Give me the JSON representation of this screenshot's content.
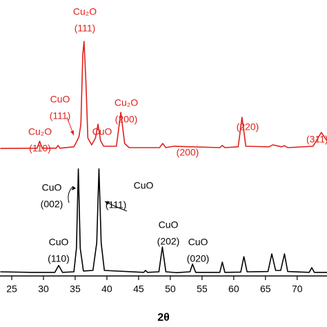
{
  "chart_data": {
    "type": "line",
    "x_label": "2θ",
    "xlim": [
      23.15,
      74.7
    ],
    "xticks": [
      25,
      30,
      35,
      40,
      45,
      50,
      55,
      60,
      65,
      70
    ],
    "ylim": [
      0,
      100
    ],
    "series": [
      {
        "color": "#000000",
        "x": [
          23.2,
          28,
          31.8,
          32.4,
          33,
          34.8,
          35.2,
          35.5,
          35.8,
          36.3,
          37.8,
          38.4,
          38.75,
          39.1,
          39.6,
          45.8,
          46.1,
          46.4,
          48.2,
          48.75,
          49.3,
          51,
          53.1,
          53.5,
          54,
          57.8,
          58.2,
          58.6,
          61.1,
          61.6,
          62.1,
          65.4,
          66,
          66.6,
          67.4,
          68,
          68.5,
          71.9,
          72.3,
          72.7,
          74.7
        ],
        "values": [
          1.5,
          1.3,
          1.3,
          3.8,
          1.3,
          1.5,
          10,
          38.8,
          10,
          1.8,
          2,
          12,
          38.8,
          12,
          2,
          1.3,
          2,
          1.3,
          1.5,
          10.5,
          1.5,
          1.2,
          1.5,
          4.3,
          1.3,
          1.3,
          5,
          1.3,
          1.4,
          7,
          1.5,
          1.6,
          8,
          2,
          2,
          8,
          1.6,
          1.3,
          3,
          1.3,
          1.3
        ]
      },
      {
        "color": "#e0201b",
        "x": [
          23.2,
          29,
          29.4,
          29.8,
          32,
          32.3,
          32.6,
          34.8,
          35.3,
          35.6,
          35.9,
          36.2,
          36.4,
          36.7,
          37,
          37.6,
          38.2,
          38.6,
          39,
          39.5,
          41.5,
          42.2,
          42.8,
          43.5,
          48.3,
          48.8,
          49.3,
          50.5,
          57.8,
          58.2,
          58.6,
          60.7,
          61.3,
          61.9,
          65.5,
          66.2,
          67.5,
          68,
          68.5,
          72.5,
          73.8,
          74.7
        ],
        "values": [
          46.2,
          46.3,
          48.8,
          46.3,
          46.3,
          47.3,
          46.3,
          46.8,
          49,
          50.5,
          55,
          80,
          85,
          70,
          50,
          47.5,
          50,
          55,
          49,
          47,
          47,
          59.3,
          48,
          46.5,
          46.5,
          48,
          46.5,
          47,
          46.5,
          47.3,
          46.5,
          46.8,
          57.5,
          47,
          46.8,
          47.5,
          46.8,
          47.2,
          46.5,
          47,
          52,
          49
        ]
      }
    ],
    "annotations": [
      {
        "lines": [
          "Cu₂O",
          "(111)"
        ],
        "color": "#e0201b"
      },
      {
        "lines": [
          "CuO",
          "(111)"
        ],
        "color": "#e0201b"
      },
      {
        "lines": [
          "Cu₂O",
          "(110)"
        ],
        "color": "#e0201b"
      },
      {
        "lines": [
          "CuO"
        ],
        "color": "#e0201b"
      },
      {
        "lines": [
          "Cu₂O",
          "(200)"
        ],
        "color": "#e0201b"
      },
      {
        "lines": [
          "(200)"
        ],
        "color": "#e0201b"
      },
      {
        "lines": [
          "(220)"
        ],
        "color": "#e0201b"
      },
      {
        "lines": [
          "(311)"
        ],
        "color": "#e0201b"
      },
      {
        "lines": [
          "CuO",
          "(002)"
        ],
        "color": "#000000"
      },
      {
        "lines": [
          "(111)"
        ],
        "color": "#000000"
      },
      {
        "lines": [
          "CuO"
        ],
        "color": "#000000"
      },
      {
        "lines": [
          "CuO",
          "(202)"
        ],
        "color": "#000000"
      },
      {
        "lines": [
          "CuO",
          "(020)"
        ],
        "color": "#000000"
      },
      {
        "lines": [
          "CuO",
          "(110)"
        ],
        "color": "#000000"
      }
    ]
  }
}
